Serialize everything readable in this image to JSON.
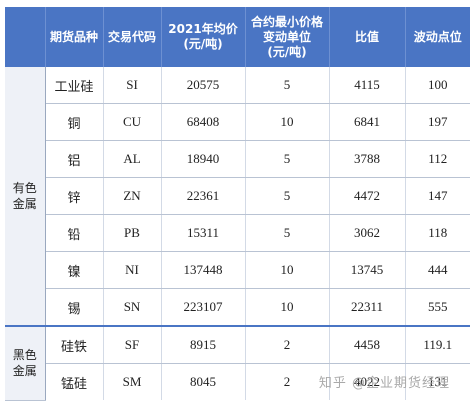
{
  "table": {
    "headers": {
      "group": "",
      "product": "期货品种",
      "code": "交易代码",
      "price_l1": "2021年均价",
      "price_l2": "(元/吨)",
      "tick_l1": "合约最小价格",
      "tick_l2": "变动单位",
      "tick_l3": "(元/吨)",
      "ratio": "比值",
      "points": "波动点位"
    },
    "groups": [
      {
        "label_l1": "有色",
        "label_l2": "金属",
        "rows": [
          {
            "name": "工业硅",
            "code": "SI",
            "price": "20575",
            "tick": "5",
            "ratio": "4115",
            "points": "100"
          },
          {
            "name": "铜",
            "code": "CU",
            "price": "68408",
            "tick": "10",
            "ratio": "6841",
            "points": "197"
          },
          {
            "name": "铝",
            "code": "AL",
            "price": "18940",
            "tick": "5",
            "ratio": "3788",
            "points": "112"
          },
          {
            "name": "锌",
            "code": "ZN",
            "price": "22361",
            "tick": "5",
            "ratio": "4472",
            "points": "147"
          },
          {
            "name": "铅",
            "code": "PB",
            "price": "15311",
            "tick": "5",
            "ratio": "3062",
            "points": "118"
          },
          {
            "name": "镍",
            "code": "NI",
            "price": "137448",
            "tick": "10",
            "ratio": "13745",
            "points": "444"
          },
          {
            "name": "锡",
            "code": "SN",
            "price": "223107",
            "tick": "10",
            "ratio": "22311",
            "points": "555"
          }
        ]
      },
      {
        "label_l1": "黑色",
        "label_l2": "金属",
        "rows": [
          {
            "name": "硅铁",
            "code": "SF",
            "price": "8915",
            "tick": "2",
            "ratio": "4458",
            "points": "119.1"
          },
          {
            "name": "锰硅",
            "code": "SM",
            "price": "8045",
            "tick": "2",
            "ratio": "4022",
            "points": "131"
          }
        ]
      }
    ]
  },
  "watermark": {
    "site": "知乎",
    "handle": "@企业期货经理"
  }
}
